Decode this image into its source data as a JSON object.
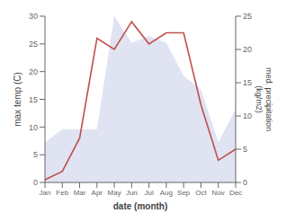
{
  "chart_data": {
    "type": "line",
    "categories": [
      "Jan",
      "Feb",
      "Mar",
      "Apr",
      "May",
      "Jun",
      "Jul",
      "Aug",
      "Sep",
      "Oct",
      "Nov",
      "Dec"
    ],
    "xlabel": "date (month)",
    "ylabel": "max temp (C)",
    "y2label": "med. precipitation\n(kg/m2)",
    "series": [
      {
        "type": "line",
        "color": "#c0504d",
        "values": [
          0.5,
          2,
          8,
          26,
          24,
          29,
          25,
          27,
          27,
          14,
          4,
          6
        ]
      },
      {
        "type": "area",
        "axis": "y2",
        "color": "#c5cce8",
        "values": [
          6,
          8,
          8,
          8,
          25,
          21,
          22,
          21,
          16,
          14,
          6,
          11
        ]
      }
    ],
    "ylim": [
      0,
      30
    ],
    "yticks": [
      0,
      5,
      10,
      15,
      20,
      25,
      30
    ],
    "y2lim": [
      0,
      25
    ],
    "y2ticks": [
      0,
      5,
      10,
      15,
      20,
      25
    ],
    "grid": false
  }
}
